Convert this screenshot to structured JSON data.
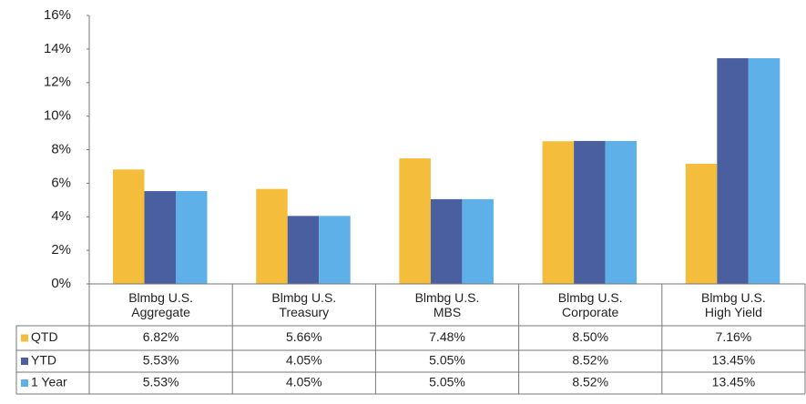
{
  "chart_data": {
    "type": "bar",
    "categories": [
      "Blmbg U.S. Aggregate",
      "Blmbg U.S. Treasury",
      "Blmbg U.S. MBS",
      "Blmbg U.S. Corporate",
      "Blmbg U.S. High Yield"
    ],
    "series": [
      {
        "name": "QTD",
        "color": "#f5bd3c",
        "values": [
          6.82,
          5.66,
          7.48,
          8.5,
          7.16
        ],
        "value_labels": [
          "6.82%",
          "5.66%",
          "7.48%",
          "8.50%",
          "7.16%"
        ]
      },
      {
        "name": "YTD",
        "color": "#4a5f9f",
        "values": [
          5.53,
          4.05,
          5.05,
          8.52,
          13.45
        ],
        "value_labels": [
          "5.53%",
          "4.05%",
          "5.05%",
          "8.52%",
          "13.45%"
        ]
      },
      {
        "name": "1 Year",
        "color": "#5eb0e8",
        "values": [
          5.53,
          4.05,
          5.05,
          8.52,
          13.45
        ],
        "value_labels": [
          "5.53%",
          "4.05%",
          "5.05%",
          "8.52%",
          "13.45%"
        ]
      }
    ],
    "ylim": [
      0,
      16
    ],
    "yticks": [
      {
        "value": 0,
        "label": "0%"
      },
      {
        "value": 2,
        "label": "2%"
      },
      {
        "value": 4,
        "label": "4%"
      },
      {
        "value": 6,
        "label": "6%"
      },
      {
        "value": 8,
        "label": "8%"
      },
      {
        "value": 10,
        "label": "10%"
      },
      {
        "value": 12,
        "label": "12%"
      },
      {
        "value": 14,
        "label": "14%"
      },
      {
        "value": 16,
        "label": "16%"
      }
    ],
    "grid": false
  }
}
